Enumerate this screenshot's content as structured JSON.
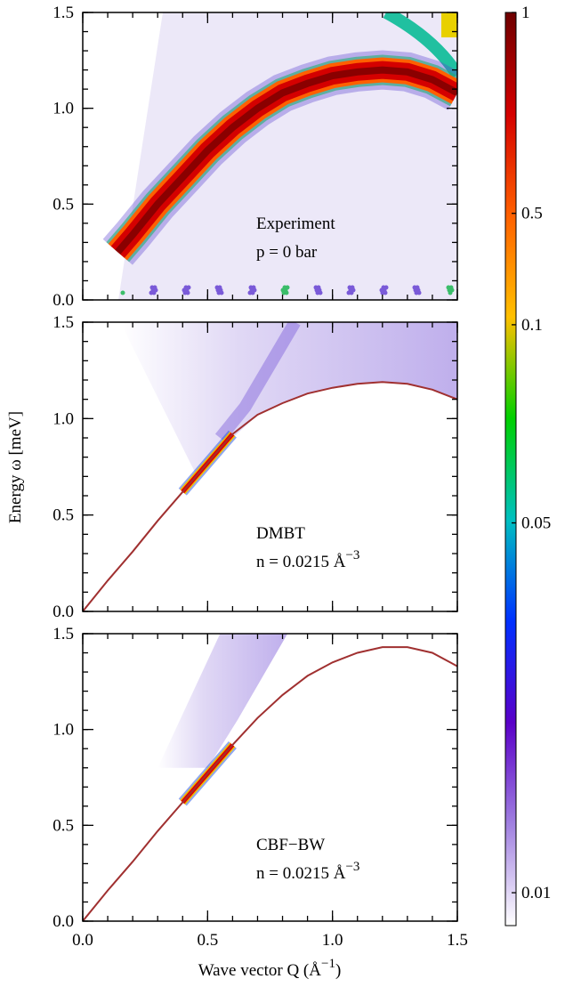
{
  "chart_data": [
    {
      "type": "heatmap",
      "annotations": [
        "Experiment",
        "p = 0 bar"
      ],
      "xlim": [
        0,
        1.5
      ],
      "ylim": [
        0,
        1.5
      ],
      "yticks": [
        {
          "value": 0,
          "label": "0.0"
        },
        0.5,
        {
          "value": 1,
          "label": "1.0"
        },
        1.5
      ],
      "series": [
        {
          "color": "#d40000",
          "x": [
            0.14,
            0.2,
            0.3,
            0.4,
            0.5,
            0.6,
            0.7,
            0.8,
            0.9,
            1.0,
            1.1,
            1.2,
            1.3,
            1.4,
            1.5
          ],
          "values": [
            0.25,
            0.34,
            0.5,
            0.64,
            0.78,
            0.9,
            1.0,
            1.08,
            1.13,
            1.17,
            1.19,
            1.2,
            1.19,
            1.15,
            1.08
          ]
        }
      ]
    },
    {
      "type": "heatmap",
      "annotations": [
        {
          "text": "DMBT"
        },
        {
          "text": "n = 0.0215 Å",
          "sup": "−3"
        }
      ],
      "ylabel": "Energy ω  [meV]",
      "xlim": [
        0,
        1.5
      ],
      "ylim": [
        0,
        1.5
      ],
      "yticks": [
        {
          "value": 0,
          "label": "0.0"
        },
        0.5,
        {
          "value": 1,
          "label": "1.0"
        },
        1.5
      ],
      "series": [
        {
          "color": "#a03030",
          "x": [
            0,
            0.1,
            0.2,
            0.3,
            0.4,
            0.5,
            0.6,
            0.7,
            0.8,
            0.9,
            1.0,
            1.1,
            1.2,
            1.3,
            1.4,
            1.5
          ],
          "values": [
            0,
            0.16,
            0.31,
            0.47,
            0.62,
            0.77,
            0.92,
            1.02,
            1.08,
            1.13,
            1.16,
            1.18,
            1.19,
            1.18,
            1.15,
            1.1
          ]
        }
      ]
    },
    {
      "type": "heatmap",
      "annotations": [
        {
          "text": "CBF−BW"
        },
        {
          "text": "n = 0.0215 Å",
          "sup": "−3"
        }
      ],
      "xlabel": {
        "text": "Wave vector Q  (Å",
        "sup": "−1",
        "after": ")"
      },
      "xlim": [
        0,
        1.5
      ],
      "ylim": [
        0,
        1.5
      ],
      "xticks": [
        {
          "value": 0,
          "label": "0.0"
        },
        0.5,
        {
          "value": 1,
          "label": "1.0"
        },
        1.5
      ],
      "yticks": [
        {
          "value": 0,
          "label": "0.0"
        },
        0.5,
        {
          "value": 1,
          "label": "1.0"
        },
        1.5
      ],
      "series": [
        {
          "color": "#a03030",
          "x": [
            0,
            0.1,
            0.2,
            0.3,
            0.4,
            0.5,
            0.6,
            0.7,
            0.8,
            0.9,
            1.0,
            1.1,
            1.2,
            1.3,
            1.4,
            1.5
          ],
          "values": [
            0,
            0.16,
            0.31,
            0.47,
            0.62,
            0.77,
            0.92,
            1.06,
            1.18,
            1.28,
            1.35,
            1.4,
            1.43,
            1.43,
            1.4,
            1.33
          ]
        }
      ]
    },
    {
      "type": "colorbar",
      "ticks": [
        1,
        0.5,
        0.1,
        0.05,
        0.01
      ],
      "colors": [
        "#6e0000",
        "#d40000",
        "#ff6000",
        "#ffc000",
        "#00d000",
        "#00c0c0",
        "#0030ff",
        "#5a00c8",
        "#a080e0",
        "#ffffff"
      ]
    }
  ]
}
